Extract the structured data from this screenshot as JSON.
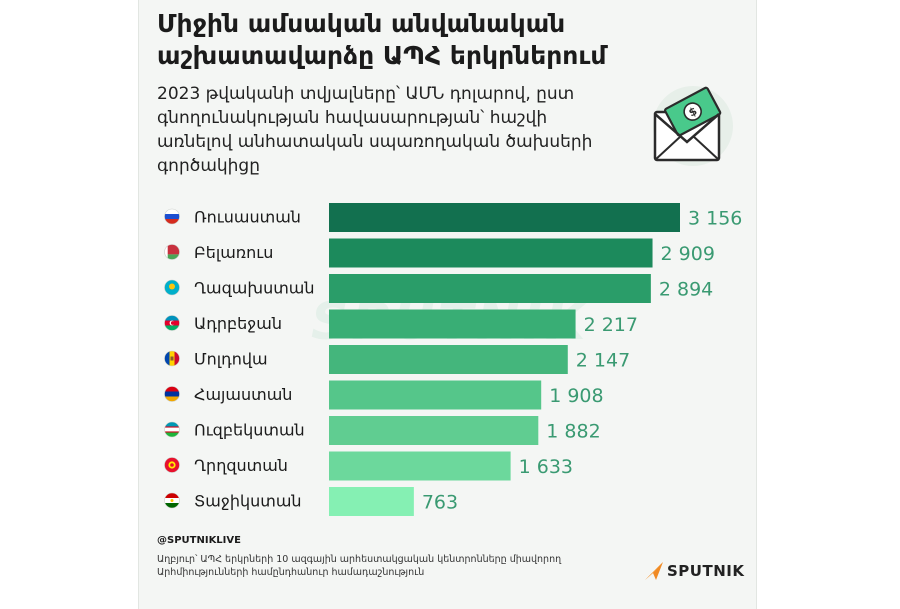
{
  "title": "Միջին ամսական անվանական աշխատավարձը ԱՊՀ երկրներում",
  "subtitle": "2023 թվականի տվյալները՝ ԱՄՆ դոլարով, ըստ գնողունակության հավասարության՝ հաշվի առնելով անհատական սպառողական ծախսերի գործակիցը",
  "watermark": "SPUTNIK",
  "footer": {
    "handle": "@SPUTNIKLIVE",
    "source": "Աղբյուր՝ ԱՊՀ երկրների 10 ազգային արհեստակցական կենտրոնները միավորող Արհմիությունների համընդհանուր համադաշնություն",
    "logo": "SPUTNIK"
  },
  "colors": {
    "bar_gradient": [
      "#12704f",
      "#1c8a5c",
      "#2a9d69",
      "#39ae75",
      "#44b67c",
      "#55c68a",
      "#60cd91",
      "#6cd89c",
      "#85f0b3"
    ],
    "value_text": "#3a9a72"
  },
  "icons": [
    "envelope-money-icon",
    "flag-russia-icon",
    "flag-belarus-icon",
    "flag-kazakhstan-icon",
    "flag-azerbaijan-icon",
    "flag-moldova-icon",
    "flag-armenia-icon",
    "flag-uzbekistan-icon",
    "flag-kyrgyzstan-icon",
    "flag-tajikistan-icon",
    "sputnik-logo-icon"
  ],
  "chart_data": {
    "type": "bar",
    "orientation": "horizontal",
    "categories": [
      "Ռուսաստան",
      "Բելառուս",
      "Ղազախստան",
      "Ադրբեջան",
      "Մոլդովա",
      "Հայաստան",
      "Ուզբեկստան",
      "Ղրղզստան",
      "Տաջիկստան"
    ],
    "values": [
      3156,
      2909,
      2894,
      2217,
      2147,
      1908,
      1882,
      1633,
      763
    ],
    "value_labels": [
      "3 156",
      "2 909",
      "2 894",
      "2 217",
      "2 147",
      "1 908",
      "1 882",
      "1 633",
      "763"
    ],
    "xlim": [
      0,
      3156
    ],
    "grid": false,
    "legend": "none"
  }
}
